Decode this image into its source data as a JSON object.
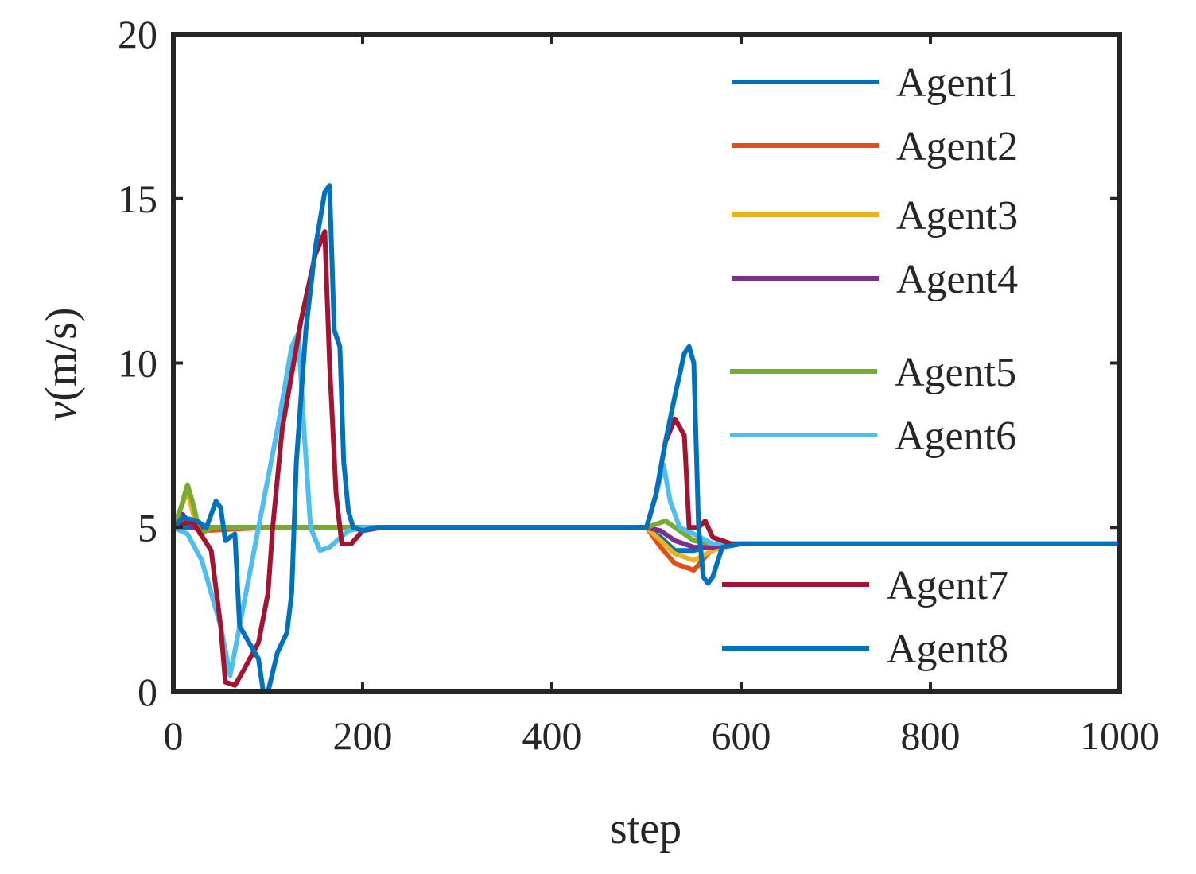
{
  "chart_data": {
    "type": "line",
    "xlabel": "step",
    "ylabel": {
      "italic": "v",
      "rest": "(m/s)"
    },
    "xlim": [
      0,
      1000
    ],
    "ylim": [
      0,
      20
    ],
    "xticks": [
      0,
      200,
      400,
      600,
      800,
      1000
    ],
    "yticks": [
      0,
      5,
      10,
      15,
      20
    ],
    "grid": false,
    "legend": {
      "placement": "right, split into two groups (Agent1–Agent6 top-right, Agent7–Agent8 lower-right)"
    },
    "series": [
      {
        "name": "Agent1",
        "color": "#0072BD",
        "points": [
          [
            0,
            5
          ],
          [
            500,
            5
          ],
          [
            515,
            4.7
          ],
          [
            530,
            4.3
          ],
          [
            550,
            4.3
          ],
          [
            570,
            4.45
          ],
          [
            600,
            4.5
          ],
          [
            1000,
            4.5
          ]
        ]
      },
      {
        "name": "Agent2",
        "color": "#D95319",
        "points": [
          [
            0,
            5
          ],
          [
            12,
            5.3
          ],
          [
            20,
            5.0
          ],
          [
            30,
            4.9
          ],
          [
            100,
            5
          ],
          [
            500,
            5
          ],
          [
            515,
            4.4
          ],
          [
            530,
            3.9
          ],
          [
            550,
            3.7
          ],
          [
            565,
            4.2
          ],
          [
            580,
            4.5
          ],
          [
            1000,
            4.5
          ]
        ]
      },
      {
        "name": "Agent3",
        "color": "#EDB120",
        "points": [
          [
            0,
            5
          ],
          [
            15,
            6.1
          ],
          [
            22,
            5.3
          ],
          [
            30,
            4.8
          ],
          [
            40,
            5
          ],
          [
            100,
            5
          ],
          [
            500,
            5
          ],
          [
            515,
            4.6
          ],
          [
            530,
            4.2
          ],
          [
            550,
            4.0
          ],
          [
            570,
            4.3
          ],
          [
            590,
            4.5
          ],
          [
            1000,
            4.5
          ]
        ]
      },
      {
        "name": "Agent4",
        "color": "#7E2F8E",
        "points": [
          [
            0,
            5
          ],
          [
            10,
            5.4
          ],
          [
            20,
            5.0
          ],
          [
            100,
            5
          ],
          [
            500,
            5
          ],
          [
            515,
            4.9
          ],
          [
            530,
            4.6
          ],
          [
            550,
            4.4
          ],
          [
            570,
            4.4
          ],
          [
            590,
            4.5
          ],
          [
            1000,
            4.5
          ]
        ]
      },
      {
        "name": "Agent5",
        "color": "#77AC30",
        "points": [
          [
            0,
            5
          ],
          [
            8,
            5.6
          ],
          [
            15,
            6.3
          ],
          [
            22,
            5.6
          ],
          [
            28,
            4.8
          ],
          [
            40,
            5
          ],
          [
            100,
            5
          ],
          [
            500,
            5
          ],
          [
            520,
            5.2
          ],
          [
            535,
            4.9
          ],
          [
            550,
            4.6
          ],
          [
            570,
            4.5
          ],
          [
            1000,
            4.5
          ]
        ]
      },
      {
        "name": "Agent6",
        "color": "#4DBEEE",
        "points": [
          [
            0,
            5
          ],
          [
            15,
            4.8
          ],
          [
            30,
            4
          ],
          [
            50,
            2
          ],
          [
            60,
            0.5
          ],
          [
            70,
            2
          ],
          [
            90,
            5
          ],
          [
            110,
            8
          ],
          [
            125,
            10.5
          ],
          [
            132,
            10.9
          ],
          [
            138,
            8
          ],
          [
            145,
            5
          ],
          [
            155,
            4.3
          ],
          [
            165,
            4.4
          ],
          [
            185,
            4.9
          ],
          [
            200,
            5
          ],
          [
            500,
            5
          ],
          [
            510,
            6
          ],
          [
            518,
            6.9
          ],
          [
            525,
            5.8
          ],
          [
            535,
            5.0
          ],
          [
            550,
            4.8
          ],
          [
            570,
            4.5
          ],
          [
            1000,
            4.5
          ]
        ]
      },
      {
        "name": "Agent7",
        "color": "#A2142F",
        "points": [
          [
            0,
            5
          ],
          [
            20,
            5.2
          ],
          [
            40,
            4.3
          ],
          [
            50,
            2
          ],
          [
            55,
            0.3
          ],
          [
            65,
            0.2
          ],
          [
            75,
            0.7
          ],
          [
            90,
            1.5
          ],
          [
            100,
            3
          ],
          [
            105,
            5
          ],
          [
            115,
            8
          ],
          [
            135,
            11.3
          ],
          [
            150,
            13.3
          ],
          [
            160,
            14.0
          ],
          [
            165,
            10
          ],
          [
            172,
            6
          ],
          [
            178,
            4.5
          ],
          [
            188,
            4.5
          ],
          [
            200,
            4.9
          ],
          [
            220,
            5
          ],
          [
            500,
            5
          ],
          [
            510,
            6
          ],
          [
            520,
            7.6
          ],
          [
            530,
            8.3
          ],
          [
            540,
            7.8
          ],
          [
            545,
            5
          ],
          [
            555,
            5.0
          ],
          [
            562,
            5.2
          ],
          [
            570,
            4.7
          ],
          [
            590,
            4.5
          ],
          [
            1000,
            4.5
          ]
        ]
      },
      {
        "name": "Agent8",
        "color": "#0072BD",
        "points": [
          [
            0,
            5
          ],
          [
            10,
            5.3
          ],
          [
            25,
            5.2
          ],
          [
            35,
            5
          ],
          [
            45,
            5.8
          ],
          [
            50,
            5.6
          ],
          [
            55,
            4.6
          ],
          [
            65,
            4.8
          ],
          [
            70,
            2
          ],
          [
            80,
            1.5
          ],
          [
            90,
            1.0
          ],
          [
            95,
            0
          ],
          [
            100,
            0
          ],
          [
            110,
            1.2
          ],
          [
            120,
            1.8
          ],
          [
            125,
            3
          ],
          [
            130,
            7
          ],
          [
            140,
            11
          ],
          [
            150,
            13.5
          ],
          [
            160,
            15.2
          ],
          [
            165,
            15.4
          ],
          [
            170,
            11
          ],
          [
            176,
            10.5
          ],
          [
            180,
            7
          ],
          [
            185,
            5.5
          ],
          [
            190,
            5.0
          ],
          [
            200,
            4.9
          ],
          [
            215,
            5
          ],
          [
            500,
            5
          ],
          [
            510,
            6
          ],
          [
            520,
            7.6
          ],
          [
            530,
            9
          ],
          [
            540,
            10.3
          ],
          [
            545,
            10.5
          ],
          [
            550,
            10
          ],
          [
            555,
            5
          ],
          [
            560,
            3.5
          ],
          [
            565,
            3.3
          ],
          [
            570,
            3.5
          ],
          [
            580,
            4.4
          ],
          [
            600,
            4.5
          ],
          [
            1000,
            4.5
          ]
        ]
      }
    ]
  }
}
